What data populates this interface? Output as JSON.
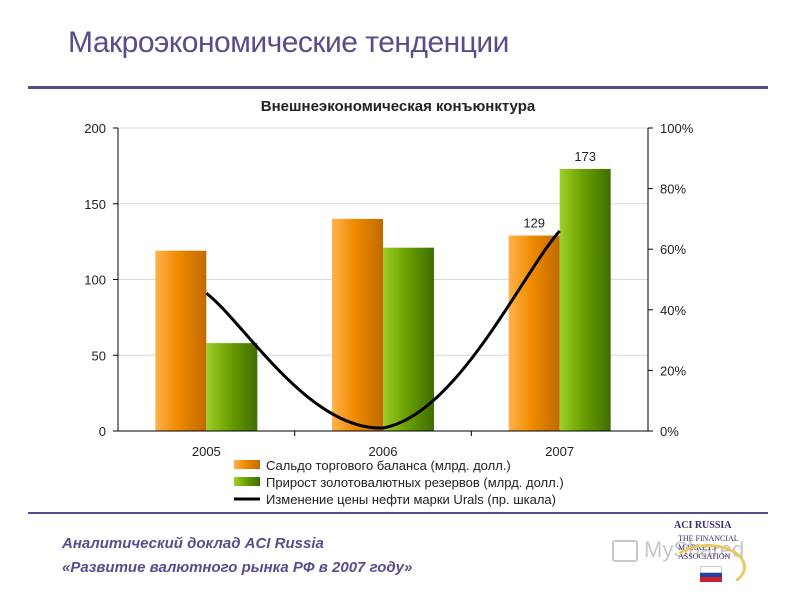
{
  "slide": {
    "title": "Макроэкономические тенденции"
  },
  "footer": {
    "line1": "Аналитический доклад ACI Russia",
    "line2": "«Развитие валютного рынка РФ в 2007 году»"
  },
  "logo": {
    "brand": "ACI RUSSIA",
    "sub": "THE FINANCIAL MARKETS ASSOCIATION"
  },
  "watermark": {
    "text": "MyShared"
  },
  "colors": {
    "title": "#5b4a8c",
    "bar_orange": "#f08a00",
    "bar_green": "#6aa000",
    "line": "#000000",
    "grid": "#d9d9d9"
  },
  "chart_data": {
    "type": "bar",
    "title": "Внешнеэкономическая конъюнктура",
    "categories": [
      "2005",
      "2006",
      "2007"
    ],
    "ylim": [
      0,
      200
    ],
    "y_ticks": [
      "0",
      "50",
      "100",
      "150",
      "200"
    ],
    "y2lim": [
      0,
      100
    ],
    "y2_ticks": [
      "0%",
      "20%",
      "40%",
      "60%",
      "80%",
      "100%"
    ],
    "grid": true,
    "legend_position": "bottom",
    "series": [
      {
        "name": "Сальдо торгового баланса (млрд. долл.)",
        "kind": "bar",
        "axis": "left",
        "values": [
          119,
          140,
          129
        ],
        "data_labels": [
          null,
          null,
          "129"
        ]
      },
      {
        "name": "Прирост золотовалютных резервов (млрд. долл.)",
        "kind": "bar",
        "axis": "left",
        "values": [
          58,
          121,
          173
        ],
        "data_labels": [
          null,
          null,
          "173"
        ]
      },
      {
        "name": "Изменение цены нефти марки Urals (пр. шкала)",
        "kind": "line",
        "axis": "right",
        "values": [
          45.5,
          1,
          66
        ]
      }
    ]
  }
}
